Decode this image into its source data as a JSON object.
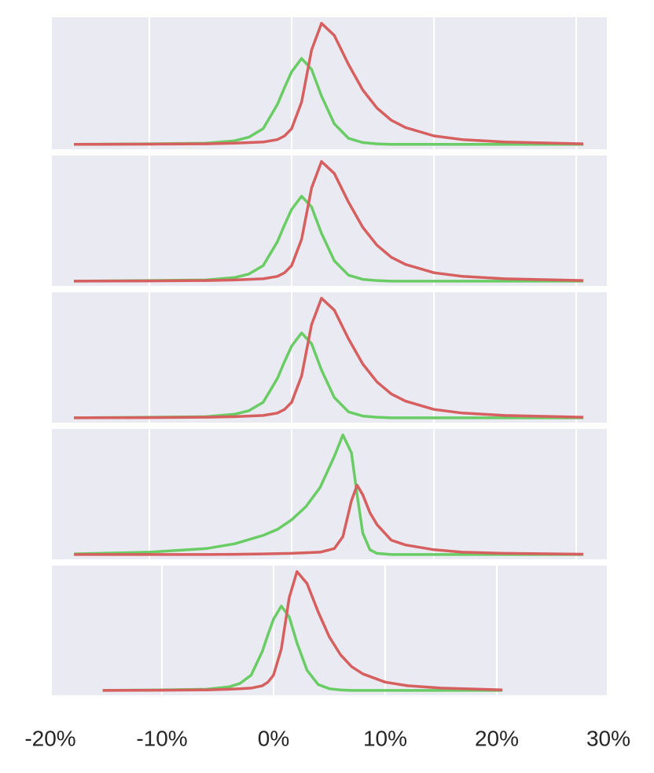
{
  "chart_data": [
    {
      "type": "line",
      "grid": true,
      "xlim": [
        -16.85,
        22.15
      ],
      "ylim": [
        -0.04,
        1.05
      ],
      "xticks": [
        -10,
        0,
        10,
        20
      ],
      "x": [
        -15.3,
        -10,
        -6,
        -4,
        -3,
        -2,
        -1,
        -0.5,
        0,
        0.7,
        1.4,
        2.1,
        3,
        4,
        5,
        6,
        7,
        8,
        10,
        12,
        15,
        20.5
      ],
      "series": [
        {
          "color": "#6acc65",
          "values": [
            0,
            0.005,
            0.01,
            0.03,
            0.06,
            0.13,
            0.33,
            0.47,
            0.6,
            0.71,
            0.62,
            0.4,
            0.17,
            0.05,
            0.015,
            0.005,
            0,
            0,
            0,
            0,
            0,
            0
          ]
        },
        {
          "color": "#d65f5f",
          "values": [
            0,
            0.002,
            0.005,
            0.01,
            0.015,
            0.02,
            0.04,
            0.07,
            0.13,
            0.35,
            0.78,
            1.0,
            0.9,
            0.66,
            0.45,
            0.3,
            0.2,
            0.14,
            0.07,
            0.04,
            0.02,
            0.005
          ]
        }
      ]
    },
    {
      "type": "line",
      "grid": true,
      "xlim": [
        -16.85,
        22.15
      ],
      "ylim": [
        -0.04,
        1.05
      ],
      "xticks": [
        -10,
        0,
        10,
        20
      ],
      "x": [
        -15.3,
        -10,
        -6,
        -4,
        -3,
        -2,
        -1,
        -0.5,
        0,
        0.7,
        1.4,
        2.1,
        3,
        4,
        5,
        6,
        7,
        8,
        10,
        12,
        15,
        20.5
      ],
      "series": [
        {
          "color": "#6acc65",
          "values": [
            0,
            0.005,
            0.01,
            0.03,
            0.06,
            0.13,
            0.33,
            0.47,
            0.6,
            0.71,
            0.62,
            0.4,
            0.17,
            0.05,
            0.015,
            0.005,
            0,
            0,
            0,
            0,
            0,
            0
          ]
        },
        {
          "color": "#d65f5f",
          "values": [
            0,
            0.002,
            0.005,
            0.01,
            0.015,
            0.02,
            0.04,
            0.07,
            0.13,
            0.35,
            0.78,
            1.0,
            0.9,
            0.66,
            0.45,
            0.3,
            0.2,
            0.14,
            0.07,
            0.04,
            0.02,
            0.005
          ]
        }
      ]
    },
    {
      "type": "line",
      "grid": true,
      "xlim": [
        -16.85,
        22.15
      ],
      "ylim": [
        -0.04,
        1.05
      ],
      "xticks": [
        -10,
        0,
        10,
        20
      ],
      "x": [
        -15.3,
        -10,
        -6,
        -4,
        -3,
        -2,
        -1,
        -0.5,
        0,
        0.7,
        1.4,
        2.1,
        3,
        4,
        5,
        6,
        7,
        8,
        10,
        12,
        15,
        20.5
      ],
      "series": [
        {
          "color": "#6acc65",
          "values": [
            0,
            0.005,
            0.01,
            0.03,
            0.06,
            0.13,
            0.33,
            0.47,
            0.6,
            0.71,
            0.62,
            0.4,
            0.17,
            0.05,
            0.015,
            0.005,
            0,
            0,
            0,
            0,
            0,
            0
          ]
        },
        {
          "color": "#d65f5f",
          "values": [
            0,
            0.002,
            0.005,
            0.01,
            0.015,
            0.02,
            0.04,
            0.07,
            0.13,
            0.35,
            0.78,
            1.0,
            0.9,
            0.66,
            0.45,
            0.3,
            0.2,
            0.14,
            0.07,
            0.04,
            0.02,
            0.005
          ]
        }
      ]
    },
    {
      "type": "line",
      "grid": true,
      "xlim": [
        -16.85,
        22.15
      ],
      "ylim": [
        -0.04,
        1.05
      ],
      "xticks": [
        -10,
        0,
        10,
        20
      ],
      "x": [
        -15.3,
        -10,
        -6,
        -4,
        -2,
        -1,
        0,
        1,
        2,
        3,
        3.6,
        4.2,
        4.6,
        5,
        5.5,
        6,
        7,
        8,
        10,
        12,
        15,
        20.5
      ],
      "series": [
        {
          "color": "#6acc65",
          "values": [
            0.005,
            0.02,
            0.05,
            0.09,
            0.16,
            0.21,
            0.29,
            0.4,
            0.56,
            0.82,
            1.0,
            0.85,
            0.5,
            0.18,
            0.04,
            0.01,
            0,
            0,
            0,
            0,
            0,
            0
          ]
        },
        {
          "color": "#d65f5f",
          "values": [
            0,
            0,
            0,
            0.002,
            0.005,
            0.008,
            0.01,
            0.015,
            0.02,
            0.05,
            0.15,
            0.45,
            0.58,
            0.5,
            0.35,
            0.25,
            0.12,
            0.08,
            0.04,
            0.02,
            0.01,
            0.003
          ]
        }
      ]
    },
    {
      "type": "line",
      "grid": true,
      "xlim": [
        -19.86,
        29.86
      ],
      "ylim": [
        -0.04,
        1.05
      ],
      "xticks": [
        {
          "value": -20,
          "label": "-20%"
        },
        {
          "value": -10,
          "label": "-10%"
        },
        {
          "value": 0,
          "label": "0%"
        },
        {
          "value": 10,
          "label": "10%"
        },
        {
          "value": 20,
          "label": "20%"
        },
        {
          "value": 30,
          "label": "30%"
        }
      ],
      "x": [
        -15.3,
        -10,
        -6,
        -4,
        -3,
        -2,
        -1,
        -0.5,
        0,
        0.7,
        1.4,
        2.1,
        3,
        4,
        5,
        6,
        7,
        8,
        10,
        12,
        15,
        20.5
      ],
      "series": [
        {
          "color": "#6acc65",
          "values": [
            0,
            0.005,
            0.01,
            0.03,
            0.06,
            0.13,
            0.33,
            0.47,
            0.6,
            0.71,
            0.62,
            0.4,
            0.17,
            0.05,
            0.015,
            0.005,
            0,
            0,
            0,
            0,
            0,
            0
          ]
        },
        {
          "color": "#d65f5f",
          "values": [
            0,
            0.002,
            0.005,
            0.01,
            0.015,
            0.02,
            0.04,
            0.07,
            0.13,
            0.35,
            0.78,
            1.0,
            0.9,
            0.66,
            0.45,
            0.3,
            0.2,
            0.14,
            0.07,
            0.04,
            0.02,
            0.005
          ]
        }
      ]
    }
  ]
}
